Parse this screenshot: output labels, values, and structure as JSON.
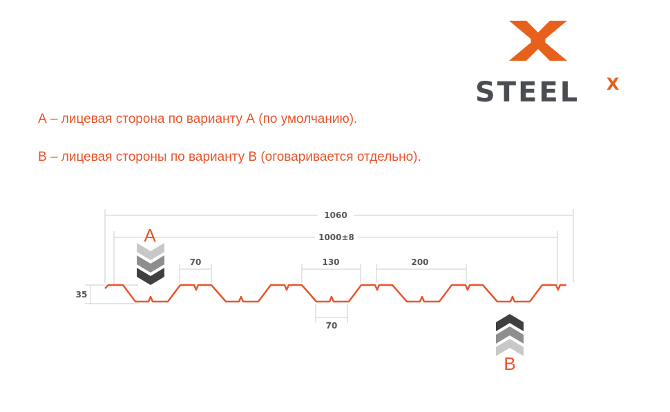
{
  "logo": {
    "text": "STEEL",
    "superscript": "X",
    "colors": {
      "orange": "#e8611c",
      "gray": "#4a4d52"
    }
  },
  "notes": [
    "А – лицевая сторона по варианту А (по умолчанию).",
    "В – лицевая стороны по варианту В (оговаривается отдельно)."
  ],
  "diagram": {
    "dimensions": {
      "total_width": "1060",
      "useful_width": "1000±8",
      "top_flat": "70",
      "valley_top": "130",
      "pitch_gap": "200",
      "valley_bottom": "70",
      "height": "35"
    },
    "side_a_label": "A",
    "side_b_label": "B",
    "profile_color": "#e8542a"
  }
}
